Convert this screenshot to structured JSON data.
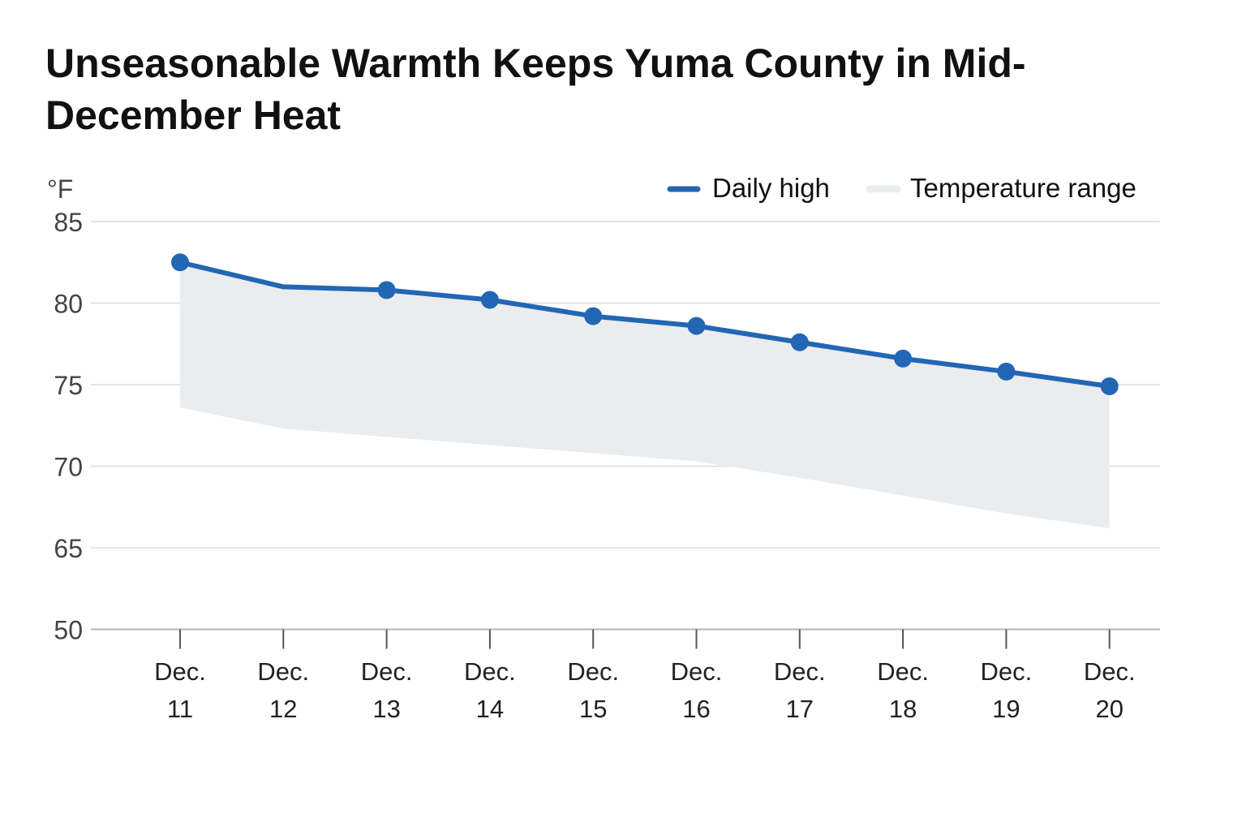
{
  "title": "Unseasonable Warmth Keeps Yuma County in Mid-December Heat",
  "chart_data": {
    "type": "line",
    "unit": "°F",
    "categories": [
      [
        "Dec.",
        "11"
      ],
      [
        "Dec.",
        "12"
      ],
      [
        "Dec.",
        "13"
      ],
      [
        "Dec.",
        "14"
      ],
      [
        "Dec.",
        "15"
      ],
      [
        "Dec.",
        "16"
      ],
      [
        "Dec.",
        "17"
      ],
      [
        "Dec.",
        "18"
      ],
      [
        "Dec.",
        "19"
      ],
      [
        "Dec.",
        "20"
      ]
    ],
    "y_ticks": [
      "85",
      "80",
      "75",
      "70",
      "65",
      "50"
    ],
    "series": [
      {
        "name": "Daily high",
        "values": [
          82.5,
          81.0,
          80.8,
          80.2,
          79.2,
          78.6,
          77.6,
          76.6,
          75.8,
          74.9
        ],
        "color": "#2366b4"
      }
    ],
    "range": {
      "name": "Temperature range",
      "low": [
        73.6,
        72.3,
        71.8,
        71.3,
        70.8,
        70.3,
        69.3,
        68.2,
        67.1,
        66.2
      ],
      "high": [
        82.5,
        81.0,
        80.8,
        80.2,
        79.2,
        78.6,
        77.6,
        76.6,
        75.8,
        74.9
      ],
      "color": "#ebeced"
    },
    "legend": {
      "position": "top-right",
      "items": [
        "Daily high",
        "Temperature range"
      ]
    },
    "grid": true
  }
}
